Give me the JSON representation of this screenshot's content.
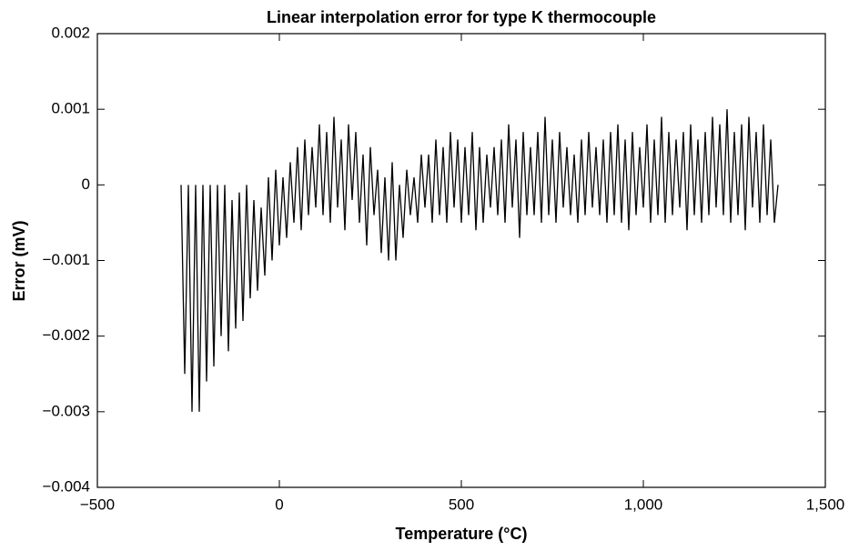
{
  "chart_data": {
    "type": "line",
    "title": "Linear interpolation error for type K thermocouple",
    "x_label": "Temperature (°C)",
    "y_label": "Error (mV)",
    "xlim": [
      -500,
      1500
    ],
    "xticks": [
      {
        "value": -500,
        "label": "−500"
      },
      0,
      500,
      {
        "value": 1000,
        "label": "1,000"
      },
      {
        "value": 1500,
        "label": "1,500"
      }
    ],
    "ylim": [
      -0.004,
      0.002
    ],
    "yticks": [
      {
        "value": -0.004,
        "label": "−0.004"
      },
      {
        "value": -0.003,
        "label": "−0.003"
      },
      {
        "value": -0.002,
        "label": "−0.002"
      },
      {
        "value": -0.001,
        "label": "−0.001"
      },
      0,
      0.001,
      0.002
    ],
    "grid": false,
    "series": [
      {
        "color": "#000000",
        "x": [
          -270,
          -260,
          -250,
          -240,
          -230,
          -220,
          -210,
          -200,
          -190,
          -180,
          -170,
          -160,
          -150,
          -140,
          -130,
          -120,
          -110,
          -100,
          -90,
          -80,
          -70,
          -60,
          -50,
          -40,
          -30,
          -20,
          -10,
          0,
          10,
          20,
          30,
          40,
          50,
          60,
          70,
          80,
          90,
          100,
          110,
          120,
          130,
          140,
          150,
          160,
          170,
          180,
          190,
          200,
          210,
          220,
          230,
          240,
          250,
          260,
          270,
          280,
          290,
          300,
          310,
          320,
          330,
          340,
          350,
          360,
          370,
          380,
          390,
          400,
          410,
          420,
          430,
          440,
          450,
          460,
          470,
          480,
          490,
          500,
          510,
          520,
          530,
          540,
          550,
          560,
          570,
          580,
          590,
          600,
          610,
          620,
          630,
          640,
          650,
          660,
          670,
          680,
          690,
          700,
          710,
          720,
          730,
          740,
          750,
          760,
          770,
          780,
          790,
          800,
          810,
          820,
          830,
          840,
          850,
          860,
          870,
          880,
          890,
          900,
          910,
          920,
          930,
          940,
          950,
          960,
          970,
          980,
          990,
          1000,
          1010,
          1020,
          1030,
          1040,
          1050,
          1060,
          1070,
          1080,
          1090,
          1100,
          1110,
          1120,
          1130,
          1140,
          1150,
          1160,
          1170,
          1180,
          1190,
          1200,
          1210,
          1220,
          1230,
          1240,
          1250,
          1260,
          1270,
          1280,
          1290,
          1300,
          1310,
          1320,
          1330,
          1340,
          1350,
          1360,
          1370
        ],
        "values": [
          0,
          -0.0025,
          0,
          -0.003,
          0,
          -0.003,
          0,
          -0.0026,
          0,
          -0.0024,
          0,
          -0.002,
          0,
          -0.0022,
          -0.0002,
          -0.0019,
          -0.0001,
          -0.0018,
          0,
          -0.0015,
          -0.0002,
          -0.0014,
          -0.0003,
          -0.0012,
          0.0001,
          -0.001,
          0.0002,
          -0.0008,
          0.0001,
          -0.0007,
          0.0003,
          -0.0005,
          0.0005,
          -0.0006,
          0.0006,
          -0.0004,
          0.0005,
          -0.0003,
          0.0008,
          -0.0004,
          0.0007,
          -0.0005,
          0.0009,
          -0.0003,
          0.0006,
          -0.0006,
          0.0008,
          -0.0002,
          0.0007,
          -0.0005,
          0.0004,
          -0.0008,
          0.0005,
          -0.0004,
          0.0002,
          -0.0009,
          0.0001,
          -0.001,
          0.0003,
          -0.001,
          0,
          -0.0007,
          0.0002,
          -0.0004,
          0.0001,
          -0.0005,
          0.0004,
          -0.0003,
          0.0004,
          -0.0005,
          0.0006,
          -0.0004,
          0.0005,
          -0.0005,
          0.0007,
          -0.0003,
          0.0006,
          -0.0005,
          0.0005,
          -0.0004,
          0.0007,
          -0.0006,
          0.0005,
          -0.0005,
          0.0004,
          -0.0003,
          0.0005,
          -0.0004,
          0.0006,
          -0.0005,
          0.0008,
          -0.0003,
          0.0006,
          -0.0007,
          0.0007,
          -0.0004,
          0.0005,
          -0.0004,
          0.0007,
          -0.0005,
          0.0009,
          -0.0004,
          0.0006,
          -0.0005,
          0.0007,
          -0.0003,
          0.0005,
          -0.0004,
          0.0004,
          -0.0005,
          0.0006,
          -0.0004,
          0.0007,
          -0.0003,
          0.0005,
          -0.0004,
          0.0006,
          -0.0005,
          0.0007,
          -0.0004,
          0.0008,
          -0.0005,
          0.0006,
          -0.0006,
          0.0007,
          -0.0004,
          0.0005,
          -0.0003,
          0.0008,
          -0.0005,
          0.0006,
          -0.0004,
          0.0009,
          -0.0005,
          0.0007,
          -0.0004,
          0.0006,
          -0.0003,
          0.0007,
          -0.0006,
          0.0008,
          -0.0004,
          0.0006,
          -0.0005,
          0.0007,
          -0.0004,
          0.0009,
          -0.0003,
          0.0008,
          -0.0004,
          0.001,
          -0.0005,
          0.0007,
          -0.0004,
          0.0008,
          -0.0006,
          0.0009,
          -0.0003,
          0.0007,
          -0.0005,
          0.0008,
          -0.0004,
          0.0006,
          -0.0005,
          0
        ]
      }
    ]
  }
}
